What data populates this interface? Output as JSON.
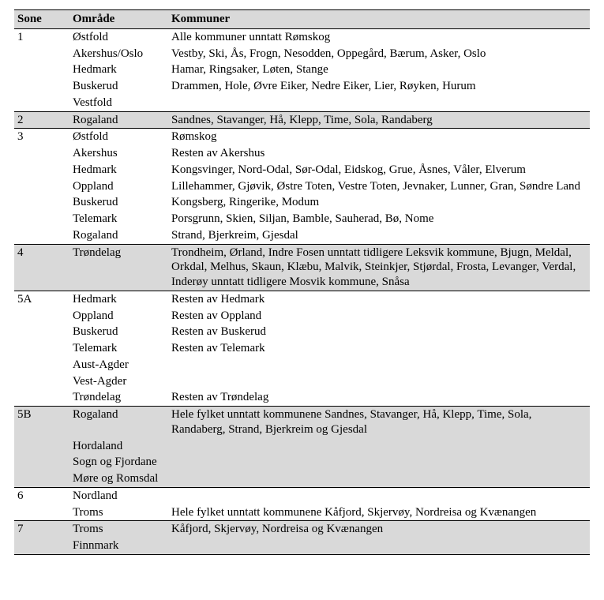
{
  "table": {
    "headers": {
      "sone": "Sone",
      "omrade": "Område",
      "kommuner": "Kommuner"
    },
    "style": {
      "header_bg": "#d9d9d9",
      "shade_bg": "#d9d9d9",
      "border_color": "#000000",
      "font_family": "Times New Roman",
      "font_size_pt": 11
    },
    "groups": [
      {
        "sone": "1",
        "shaded": false,
        "rows": [
          {
            "omrade": "Østfold",
            "kommuner": "Alle kommuner unntatt Rømskog"
          },
          {
            "omrade": "Akershus/Oslo",
            "kommuner": "Vestby, Ski, Ås, Frogn, Nesodden, Oppegård, Bærum, Asker, Oslo"
          },
          {
            "omrade": "Hedmark",
            "kommuner": "Hamar, Ringsaker, Løten, Stange"
          },
          {
            "omrade": "Buskerud",
            "kommuner": "Drammen, Hole, Øvre Eiker, Nedre Eiker, Lier, Røyken, Hurum"
          },
          {
            "omrade": "Vestfold",
            "kommuner": ""
          }
        ]
      },
      {
        "sone": "2",
        "shaded": true,
        "rows": [
          {
            "omrade": "Rogaland",
            "kommuner": "Sandnes, Stavanger, Hå, Klepp, Time, Sola, Randaberg"
          }
        ]
      },
      {
        "sone": "3",
        "shaded": false,
        "rows": [
          {
            "omrade": "Østfold",
            "kommuner": "Rømskog"
          },
          {
            "omrade": "Akershus",
            "kommuner": "Resten av Akershus"
          },
          {
            "omrade": "Hedmark",
            "kommuner": "Kongsvinger, Nord-Odal, Sør-Odal, Eidskog, Grue, Åsnes, Våler, Elverum"
          },
          {
            "omrade": "Oppland",
            "kommuner": "Lillehammer, Gjøvik, Østre Toten, Vestre Toten, Jevnaker, Lunner, Gran, Søndre Land"
          },
          {
            "omrade": "Buskerud",
            "kommuner": "Kongsberg, Ringerike, Modum"
          },
          {
            "omrade": "Telemark",
            "kommuner": "Porsgrunn, Skien, Siljan, Bamble, Sauherad, Bø, Nome"
          },
          {
            "omrade": "Rogaland",
            "kommuner": "Strand, Bjerkreim, Gjesdal"
          }
        ]
      },
      {
        "sone": "4",
        "shaded": true,
        "rows": [
          {
            "omrade": "Trøndelag",
            "kommuner": "Trondheim, Ørland, Indre Fosen unntatt tidligere Leksvik kommune, Bjugn, Meldal, Orkdal, Melhus, Skaun, Klæbu, Malvik, Steinkjer, Stjørdal, Frosta, Levanger, Verdal, Inderøy unntatt tidligere Mosvik kommune, Snåsa"
          }
        ]
      },
      {
        "sone": "5A",
        "shaded": false,
        "rows": [
          {
            "omrade": "Hedmark",
            "kommuner": "Resten av Hedmark"
          },
          {
            "omrade": "Oppland",
            "kommuner": "Resten av Oppland"
          },
          {
            "omrade": "Buskerud",
            "kommuner": "Resten av Buskerud"
          },
          {
            "omrade": "Telemark",
            "kommuner": "Resten av Telemark"
          },
          {
            "omrade": "Aust-Agder",
            "kommuner": ""
          },
          {
            "omrade": "Vest-Agder",
            "kommuner": ""
          },
          {
            "omrade": "Trøndelag",
            "kommuner": "Resten av Trøndelag"
          }
        ]
      },
      {
        "sone": "5B",
        "shaded": true,
        "rows": [
          {
            "omrade": "Rogaland",
            "kommuner": "Hele fylket unntatt kommunene Sandnes, Stavanger, Hå, Klepp, Time, Sola, Randaberg, Strand, Bjerkreim og Gjesdal"
          },
          {
            "omrade": "Hordaland",
            "kommuner": ""
          },
          {
            "omrade": "Sogn og Fjordane",
            "kommuner": ""
          },
          {
            "omrade": "Møre og Romsdal",
            "kommuner": ""
          }
        ]
      },
      {
        "sone": "6",
        "shaded": false,
        "rows": [
          {
            "omrade": "Nordland",
            "kommuner": ""
          },
          {
            "omrade": "Troms",
            "kommuner": "Hele fylket unntatt kommunene Kåfjord, Skjervøy, Nordreisa og Kvænangen"
          }
        ]
      },
      {
        "sone": "7",
        "shaded": true,
        "rows": [
          {
            "omrade": "Troms",
            "kommuner": "Kåfjord, Skjervøy, Nordreisa og Kvænangen"
          },
          {
            "omrade": "Finnmark",
            "kommuner": ""
          }
        ]
      }
    ]
  }
}
